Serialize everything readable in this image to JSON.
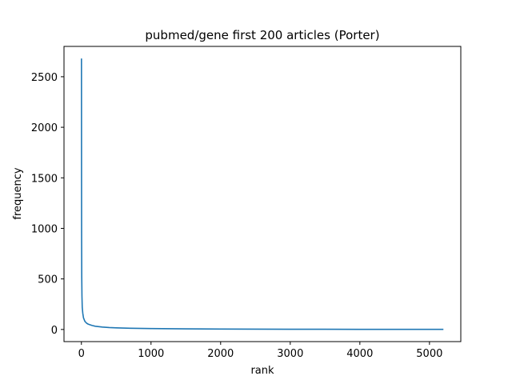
{
  "chart_data": {
    "type": "line",
    "title": "pubmed/gene first 200 articles (Porter)",
    "xlabel": "rank",
    "ylabel": "frequency",
    "xlim": [
      -250,
      5450
    ],
    "ylim": [
      -120,
      2800
    ],
    "xticks": [
      0,
      1000,
      2000,
      3000,
      4000,
      5000
    ],
    "yticks": [
      0,
      500,
      1000,
      1500,
      2000,
      2500
    ],
    "grid": false,
    "series": [
      {
        "color": "#1f77b4",
        "x": [
          1,
          2,
          3,
          5,
          8,
          12,
          20,
          30,
          50,
          75,
          100,
          150,
          200,
          300,
          400,
          500,
          700,
          1000,
          1500,
          2000,
          2500,
          3000,
          3500,
          4000,
          4500,
          5000,
          5200
        ],
        "y": [
          2680,
          1500,
          900,
          520,
          330,
          220,
          160,
          115,
          80,
          62,
          52,
          40,
          32,
          24,
          19,
          16,
          12,
          9,
          6,
          4,
          3,
          2,
          2,
          1,
          1,
          1,
          1
        ]
      }
    ]
  }
}
